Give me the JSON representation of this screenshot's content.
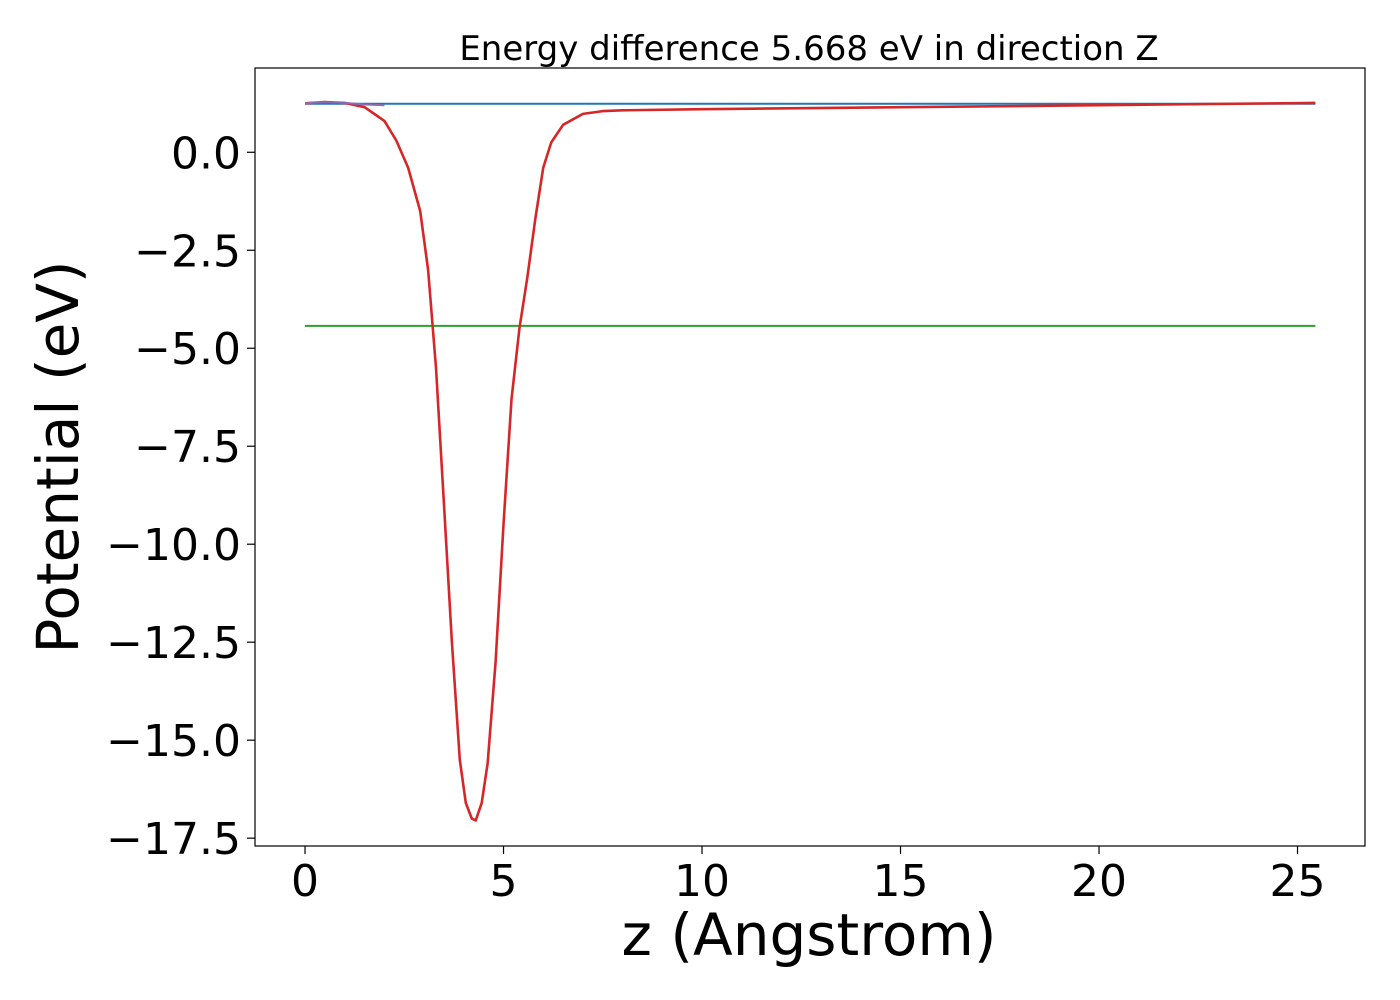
{
  "chart_data": {
    "type": "line",
    "title": "Energy difference 5.668 eV in direction Z",
    "xlabel": "z (Angstrom)",
    "ylabel": "Potential (eV)",
    "xlim": [
      -1.26,
      26.7
    ],
    "ylim": [
      -17.7,
      2.15
    ],
    "xticks": [
      0,
      5,
      10,
      15,
      20,
      25
    ],
    "yticks": [
      0.0,
      -2.5,
      -5.0,
      -7.5,
      -10.0,
      -12.5,
      -15.0,
      -17.5
    ],
    "xtick_labels": [
      "0",
      "5",
      "10",
      "15",
      "20",
      "25"
    ],
    "ytick_labels": [
      "0.0",
      "−2.5",
      "−5.0",
      "−7.5",
      "−10.0",
      "−12.5",
      "−15.0",
      "−17.5"
    ],
    "grid": false,
    "legend": "none",
    "series": [
      {
        "color": "#1f77b4",
        "x": [
          0,
          25.45
        ],
        "y": [
          1.24,
          1.24
        ]
      },
      {
        "color": "#2ca02c",
        "x": [
          0,
          25.45
        ],
        "y": [
          -4.43,
          -4.43
        ]
      },
      {
        "color": "#d62728",
        "x": [
          0,
          0.5,
          1.0,
          1.5,
          2.0,
          2.3,
          2.6,
          2.9,
          3.1,
          3.3,
          3.5,
          3.7,
          3.9,
          4.05,
          4.2,
          4.3,
          4.45,
          4.6,
          4.8,
          5.0,
          5.2,
          5.4,
          5.6,
          5.8,
          6.0,
          6.2,
          6.5,
          7.0,
          7.5,
          8.0,
          10.0,
          15.0,
          20.0,
          25.45
        ],
        "y": [
          1.25,
          1.28,
          1.26,
          1.15,
          0.8,
          0.3,
          -0.4,
          -1.5,
          -3.0,
          -5.5,
          -9.0,
          -12.5,
          -15.5,
          -16.6,
          -17.0,
          -17.05,
          -16.6,
          -15.6,
          -13.0,
          -9.5,
          -6.3,
          -4.5,
          -3.2,
          -1.7,
          -0.4,
          0.25,
          0.7,
          0.98,
          1.05,
          1.07,
          1.1,
          1.15,
          1.2,
          1.26
        ]
      },
      {
        "color": "#8c6bb1",
        "x": [
          0,
          0.5,
          1.0,
          1.5,
          2.0
        ],
        "y": [
          1.25,
          1.28,
          1.26,
          1.22,
          1.2
        ]
      }
    ]
  }
}
